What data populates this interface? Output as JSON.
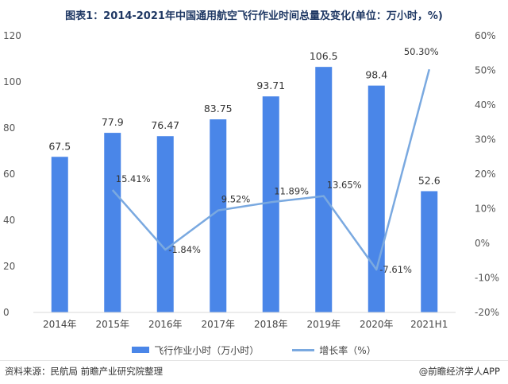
{
  "title": "图表1：2014-2021年中国通用航空飞行作业时间总量及变化(单位：万小时，%)",
  "source": "资料来源：民航局 前瞻产业研究院整理",
  "brand": "@前瞻经济学人APP",
  "colors": {
    "bar": "#4a86e8",
    "line": "#7aa9e0"
  },
  "chart_data": {
    "type": "bar",
    "categories": [
      "2014年",
      "2015年",
      "2016年",
      "2017年",
      "2018年",
      "2019年",
      "2020年",
      "2021H1"
    ],
    "series": [
      {
        "name": "飞行作业小时（万小时）",
        "type": "bar",
        "axis": "left",
        "values": [
          67.5,
          77.9,
          76.47,
          83.75,
          93.71,
          106.5,
          98.4,
          52.6
        ],
        "labels": [
          "67.5",
          "77.9",
          "76.47",
          "83.75",
          "93.71",
          "106.5",
          "98.4",
          "52.6"
        ]
      },
      {
        "name": "增长率（%）",
        "type": "line",
        "axis": "right",
        "values": [
          null,
          15.41,
          -1.84,
          9.52,
          11.89,
          13.65,
          -7.61,
          50.3
        ],
        "labels": [
          null,
          "15.41%",
          "-1.84%",
          "9.52%",
          "11.89%",
          "13.65%",
          "-7.61%",
          "50.30%"
        ]
      }
    ],
    "y_left": {
      "ylim": [
        0,
        120
      ],
      "ticks": [
        "0",
        "20",
        "40",
        "60",
        "80",
        "100",
        "120"
      ]
    },
    "y_right": {
      "ylim": [
        -20,
        60
      ],
      "ticks": [
        "-20%",
        "-10%",
        "0%",
        "10%",
        "20%",
        "30%",
        "40%",
        "50%",
        "60%"
      ]
    },
    "grid": false,
    "legend": "bottom"
  }
}
